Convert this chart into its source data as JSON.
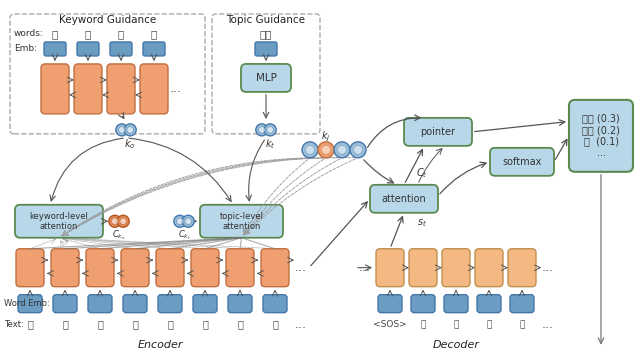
{
  "bg_color": "#ffffff",
  "orange_enc": "#F0A070",
  "orange_dec": "#F4B882",
  "blue_emb": "#6B9DC2",
  "blue_box": "#9BBFD8",
  "green_border": "#5A8A50",
  "output_text": "好看 (0.3)\n独特 (0.2)\n。  (0.1)\n...",
  "keyword_guidance_label": "Keyword Guidance",
  "topic_guidance_label": "Topic Guidance",
  "keyword_words": [
    "玄",
    "女",
    "造",
    "型"
  ],
  "topic_word": "造型",
  "encoder_text": [
    "三",
    "生",
    "三",
    "世",
    "玄",
    "女",
    "造",
    "型"
  ],
  "decoder_text": [
    "<SOS>",
    "玄",
    "女",
    "造",
    "型"
  ]
}
